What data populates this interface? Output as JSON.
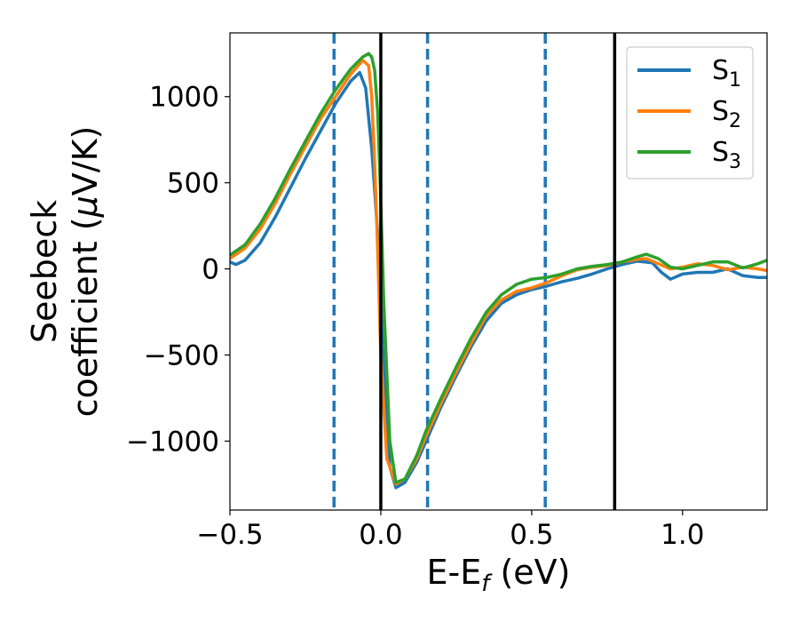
{
  "chart_data": {
    "type": "line",
    "xlabel": {
      "main": "E-E",
      "sub": "f",
      "unit": " (eV)"
    },
    "ylabel": {
      "line1": "Seebeck",
      "line2_pre": "coefficient  (",
      "line2_mu": "μ",
      "line2_post": "V/K)"
    },
    "xlim": [
      -0.5,
      1.28
    ],
    "ylim": [
      -1400,
      1370
    ],
    "xticks": [
      {
        "v": -0.5,
        "label": "−0.5"
      },
      {
        "v": 0.0,
        "label": "0.0"
      },
      {
        "v": 0.5,
        "label": "0.5"
      },
      {
        "v": 1.0,
        "label": "1.0"
      }
    ],
    "yticks": [
      {
        "v": 1000,
        "label": "1000"
      },
      {
        "v": 500,
        "label": "500"
      },
      {
        "v": 0,
        "label": "0"
      },
      {
        "v": -500,
        "label": "−500"
      },
      {
        "v": -1000,
        "label": "−1000"
      }
    ],
    "vlines_dashed": [
      -0.155,
      0.155,
      0.545
    ],
    "vlines_solid": [
      0.0,
      0.775
    ],
    "vline_dashed_color": "#1f77b4",
    "vline_solid_color": "#000000",
    "legend_position": "top-right",
    "series": [
      {
        "name": "S",
        "sub": "1",
        "color": "#1f77b4",
        "points": [
          [
            -0.5,
            40
          ],
          [
            -0.48,
            25
          ],
          [
            -0.45,
            50
          ],
          [
            -0.4,
            150
          ],
          [
            -0.35,
            300
          ],
          [
            -0.3,
            470
          ],
          [
            -0.25,
            640
          ],
          [
            -0.2,
            800
          ],
          [
            -0.15,
            960
          ],
          [
            -0.1,
            1090
          ],
          [
            -0.07,
            1140
          ],
          [
            -0.05,
            1050
          ],
          [
            -0.03,
            700
          ],
          [
            -0.01,
            200
          ],
          [
            0.01,
            -600
          ],
          [
            0.03,
            -1150
          ],
          [
            0.05,
            -1270
          ],
          [
            0.08,
            -1240
          ],
          [
            0.12,
            -1120
          ],
          [
            0.15,
            -1000
          ],
          [
            0.2,
            -800
          ],
          [
            0.25,
            -620
          ],
          [
            0.3,
            -450
          ],
          [
            0.35,
            -300
          ],
          [
            0.4,
            -200
          ],
          [
            0.45,
            -150
          ],
          [
            0.5,
            -120
          ],
          [
            0.55,
            -100
          ],
          [
            0.6,
            -75
          ],
          [
            0.65,
            -55
          ],
          [
            0.7,
            -30
          ],
          [
            0.75,
            0
          ],
          [
            0.8,
            25
          ],
          [
            0.85,
            45
          ],
          [
            0.9,
            35
          ],
          [
            0.93,
            -20
          ],
          [
            0.96,
            -60
          ],
          [
            1.0,
            -30
          ],
          [
            1.05,
            -20
          ],
          [
            1.1,
            -20
          ],
          [
            1.15,
            0
          ],
          [
            1.2,
            -40
          ],
          [
            1.25,
            -50
          ],
          [
            1.28,
            -50
          ]
        ]
      },
      {
        "name": "S",
        "sub": "2",
        "color": "#ff7f0e",
        "points": [
          [
            -0.5,
            60
          ],
          [
            -0.45,
            120
          ],
          [
            -0.4,
            230
          ],
          [
            -0.35,
            380
          ],
          [
            -0.3,
            550
          ],
          [
            -0.25,
            710
          ],
          [
            -0.2,
            870
          ],
          [
            -0.15,
            1000
          ],
          [
            -0.1,
            1130
          ],
          [
            -0.06,
            1210
          ],
          [
            -0.04,
            1180
          ],
          [
            -0.03,
            1000
          ],
          [
            -0.02,
            600
          ],
          [
            -0.01,
            100
          ],
          [
            0.0,
            -500
          ],
          [
            0.02,
            -1100
          ],
          [
            0.05,
            -1250
          ],
          [
            0.08,
            -1220
          ],
          [
            0.12,
            -1100
          ],
          [
            0.15,
            -970
          ],
          [
            0.2,
            -780
          ],
          [
            0.25,
            -600
          ],
          [
            0.3,
            -430
          ],
          [
            0.35,
            -270
          ],
          [
            0.4,
            -180
          ],
          [
            0.45,
            -130
          ],
          [
            0.5,
            -110
          ],
          [
            0.55,
            -80
          ],
          [
            0.6,
            -40
          ],
          [
            0.65,
            -5
          ],
          [
            0.7,
            10
          ],
          [
            0.75,
            20
          ],
          [
            0.8,
            40
          ],
          [
            0.85,
            55
          ],
          [
            0.88,
            60
          ],
          [
            0.92,
            30
          ],
          [
            0.96,
            0
          ],
          [
            1.0,
            10
          ],
          [
            1.05,
            30
          ],
          [
            1.1,
            20
          ],
          [
            1.15,
            -5
          ],
          [
            1.2,
            10
          ],
          [
            1.25,
            0
          ],
          [
            1.28,
            -10
          ]
        ]
      },
      {
        "name": "S",
        "sub": "3",
        "color": "#2ca02c",
        "points": [
          [
            -0.5,
            80
          ],
          [
            -0.45,
            140
          ],
          [
            -0.4,
            260
          ],
          [
            -0.35,
            410
          ],
          [
            -0.3,
            580
          ],
          [
            -0.25,
            740
          ],
          [
            -0.2,
            900
          ],
          [
            -0.15,
            1040
          ],
          [
            -0.1,
            1160
          ],
          [
            -0.06,
            1230
          ],
          [
            -0.04,
            1250
          ],
          [
            -0.03,
            1230
          ],
          [
            -0.02,
            1150
          ],
          [
            -0.01,
            900
          ],
          [
            0.0,
            400
          ],
          [
            0.01,
            -200
          ],
          [
            0.03,
            -1000
          ],
          [
            0.05,
            -1240
          ],
          [
            0.08,
            -1220
          ],
          [
            0.12,
            -1080
          ],
          [
            0.15,
            -940
          ],
          [
            0.2,
            -750
          ],
          [
            0.25,
            -570
          ],
          [
            0.3,
            -400
          ],
          [
            0.35,
            -250
          ],
          [
            0.4,
            -150
          ],
          [
            0.45,
            -90
          ],
          [
            0.5,
            -60
          ],
          [
            0.55,
            -50
          ],
          [
            0.6,
            -30
          ],
          [
            0.65,
            0
          ],
          [
            0.7,
            15
          ],
          [
            0.75,
            25
          ],
          [
            0.8,
            40
          ],
          [
            0.85,
            70
          ],
          [
            0.88,
            85
          ],
          [
            0.92,
            60
          ],
          [
            0.96,
            10
          ],
          [
            1.0,
            0
          ],
          [
            1.05,
            20
          ],
          [
            1.1,
            40
          ],
          [
            1.15,
            40
          ],
          [
            1.2,
            5
          ],
          [
            1.25,
            30
          ],
          [
            1.28,
            50
          ]
        ]
      }
    ]
  }
}
